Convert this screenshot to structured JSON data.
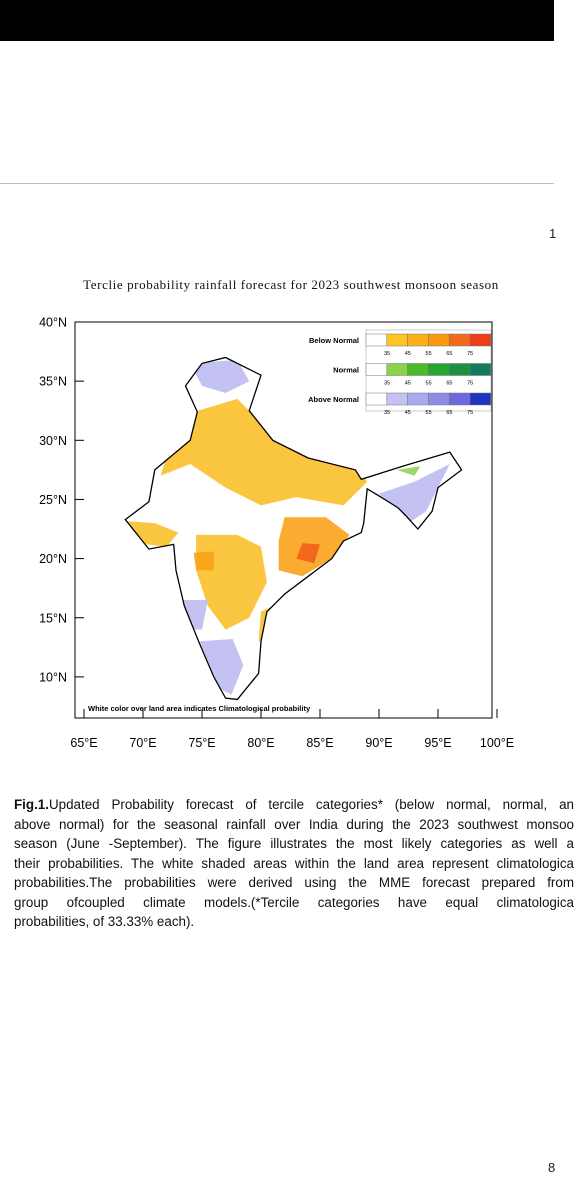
{
  "header": {
    "page_marker": "1"
  },
  "figure": {
    "title": "Terclie probability rainfall forecast for 2023 southwest monsoon  season",
    "yticks": [
      "40°N",
      "35°N",
      "30°N",
      "25°N",
      "20°N",
      "15°N",
      "10°N"
    ],
    "xticks": [
      "65°E",
      "70°E",
      "75°E",
      "80°E",
      "85°E",
      "90°E",
      "95°E",
      "100°E"
    ],
    "legend": [
      {
        "label": "Below Normal",
        "ticks": [
          "35",
          "45",
          "55",
          "65",
          "75"
        ]
      },
      {
        "label": "Normal",
        "ticks": [
          "35",
          "45",
          "55",
          "65",
          "75"
        ]
      },
      {
        "label": "Above Normal",
        "ticks": [
          "35",
          "45",
          "55",
          "65",
          "75"
        ]
      }
    ],
    "note": "White color over land area indicates Climatological probability"
  },
  "caption": {
    "label": "Fig.1.",
    "lines": [
      "Updated Probability forecast of tercile categories* (below normal, normal, an",
      "above normal) for the seasonal rainfall over India during the 2023 southwest monsoo",
      "season (June -September). The figure illustrates the most likely categories as well a",
      "their probabilities. The white shaded areas within the land area represent climatologica",
      "probabilities.The probabilities were derived using the MME forecast prepared from",
      "group ofcoupled climate models.(*Tercile categories have equal climatologica",
      "probabilities, of 33.33% each)."
    ]
  },
  "footer": {
    "page_number": "8"
  }
}
